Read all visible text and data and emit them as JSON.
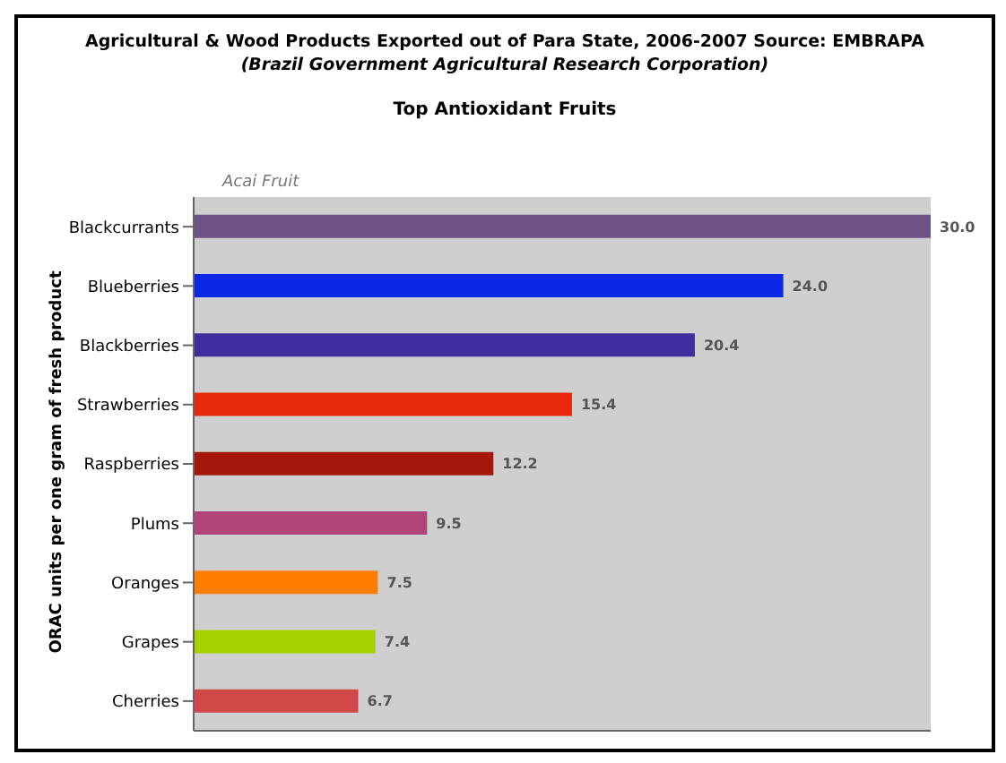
{
  "chart_data": {
    "type": "bar",
    "orientation": "horizontal",
    "title": "Agricultural & Wood Products Exported out of Para State, 2006-2007 Source: EMBRAPA",
    "subtitle": "(Brazil Government Agricultural Research Corporation)",
    "annotations": [
      "Top Antioxidant Fruits",
      "Acai Fruit"
    ],
    "ylabel": "ORAC units per one gram of fresh product",
    "categories": [
      "Blackcurrants",
      "Blueberries",
      "Blackberries",
      "Strawberries",
      "Raspberries",
      "Plums",
      "Oranges",
      "Grapes",
      "Cherries"
    ],
    "values": [
      30.0,
      24.0,
      20.4,
      15.4,
      12.2,
      9.5,
      7.5,
      7.4,
      6.7
    ],
    "value_labels": [
      "30.0",
      "24.0",
      "20.4",
      "15.4",
      "12.2",
      "9.5",
      "7.5",
      "7.4",
      "6.7"
    ],
    "colors": [
      "#6e5387",
      "#0a28e6",
      "#3f2ea0",
      "#e82a0a",
      "#a5170a",
      "#b0457a",
      "#ff7d00",
      "#a8d100",
      "#d24848"
    ],
    "tick_labels": "y"
  }
}
